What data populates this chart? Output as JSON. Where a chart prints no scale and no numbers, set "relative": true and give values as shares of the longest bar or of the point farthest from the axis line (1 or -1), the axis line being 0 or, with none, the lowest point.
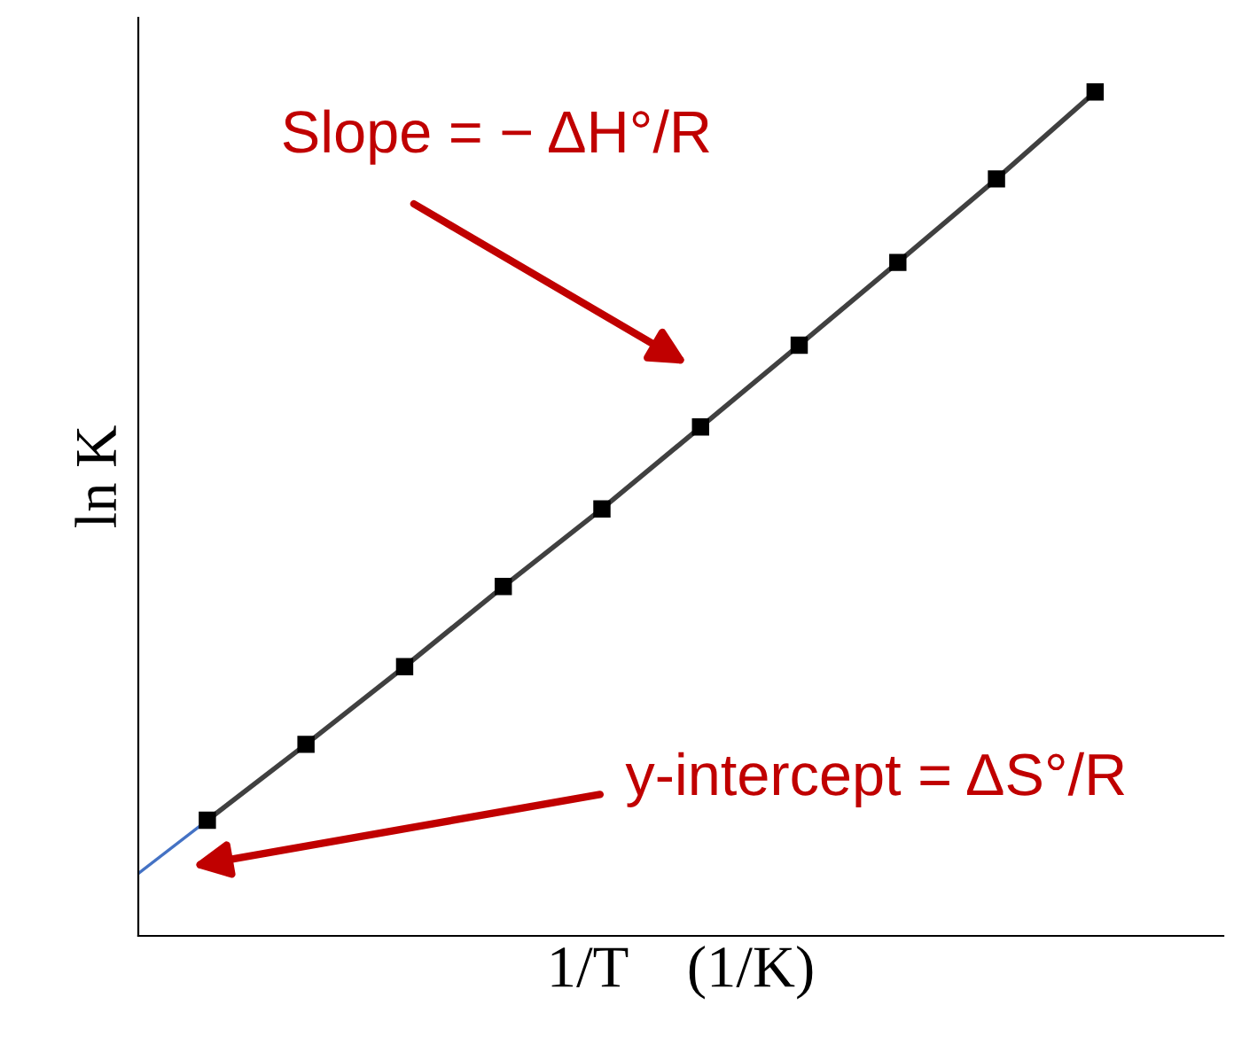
{
  "chart_data": {
    "type": "line",
    "relative": true,
    "xlabel": "1/T    (1/K)",
    "ylabel": "ln K",
    "categories": [
      null,
      null,
      null,
      null,
      null,
      null,
      null,
      null,
      null,
      null
    ],
    "series": [
      {
        "color": "#404040",
        "values": [
          0.137,
          0.227,
          0.319,
          0.414,
          0.506,
          0.603,
          0.7,
          0.798,
          0.897,
          1.0
        ],
        "marker": "square"
      }
    ],
    "annotations": [
      "Slope = − ΔH°/R",
      "y-intercept = ΔS°/R"
    ]
  }
}
